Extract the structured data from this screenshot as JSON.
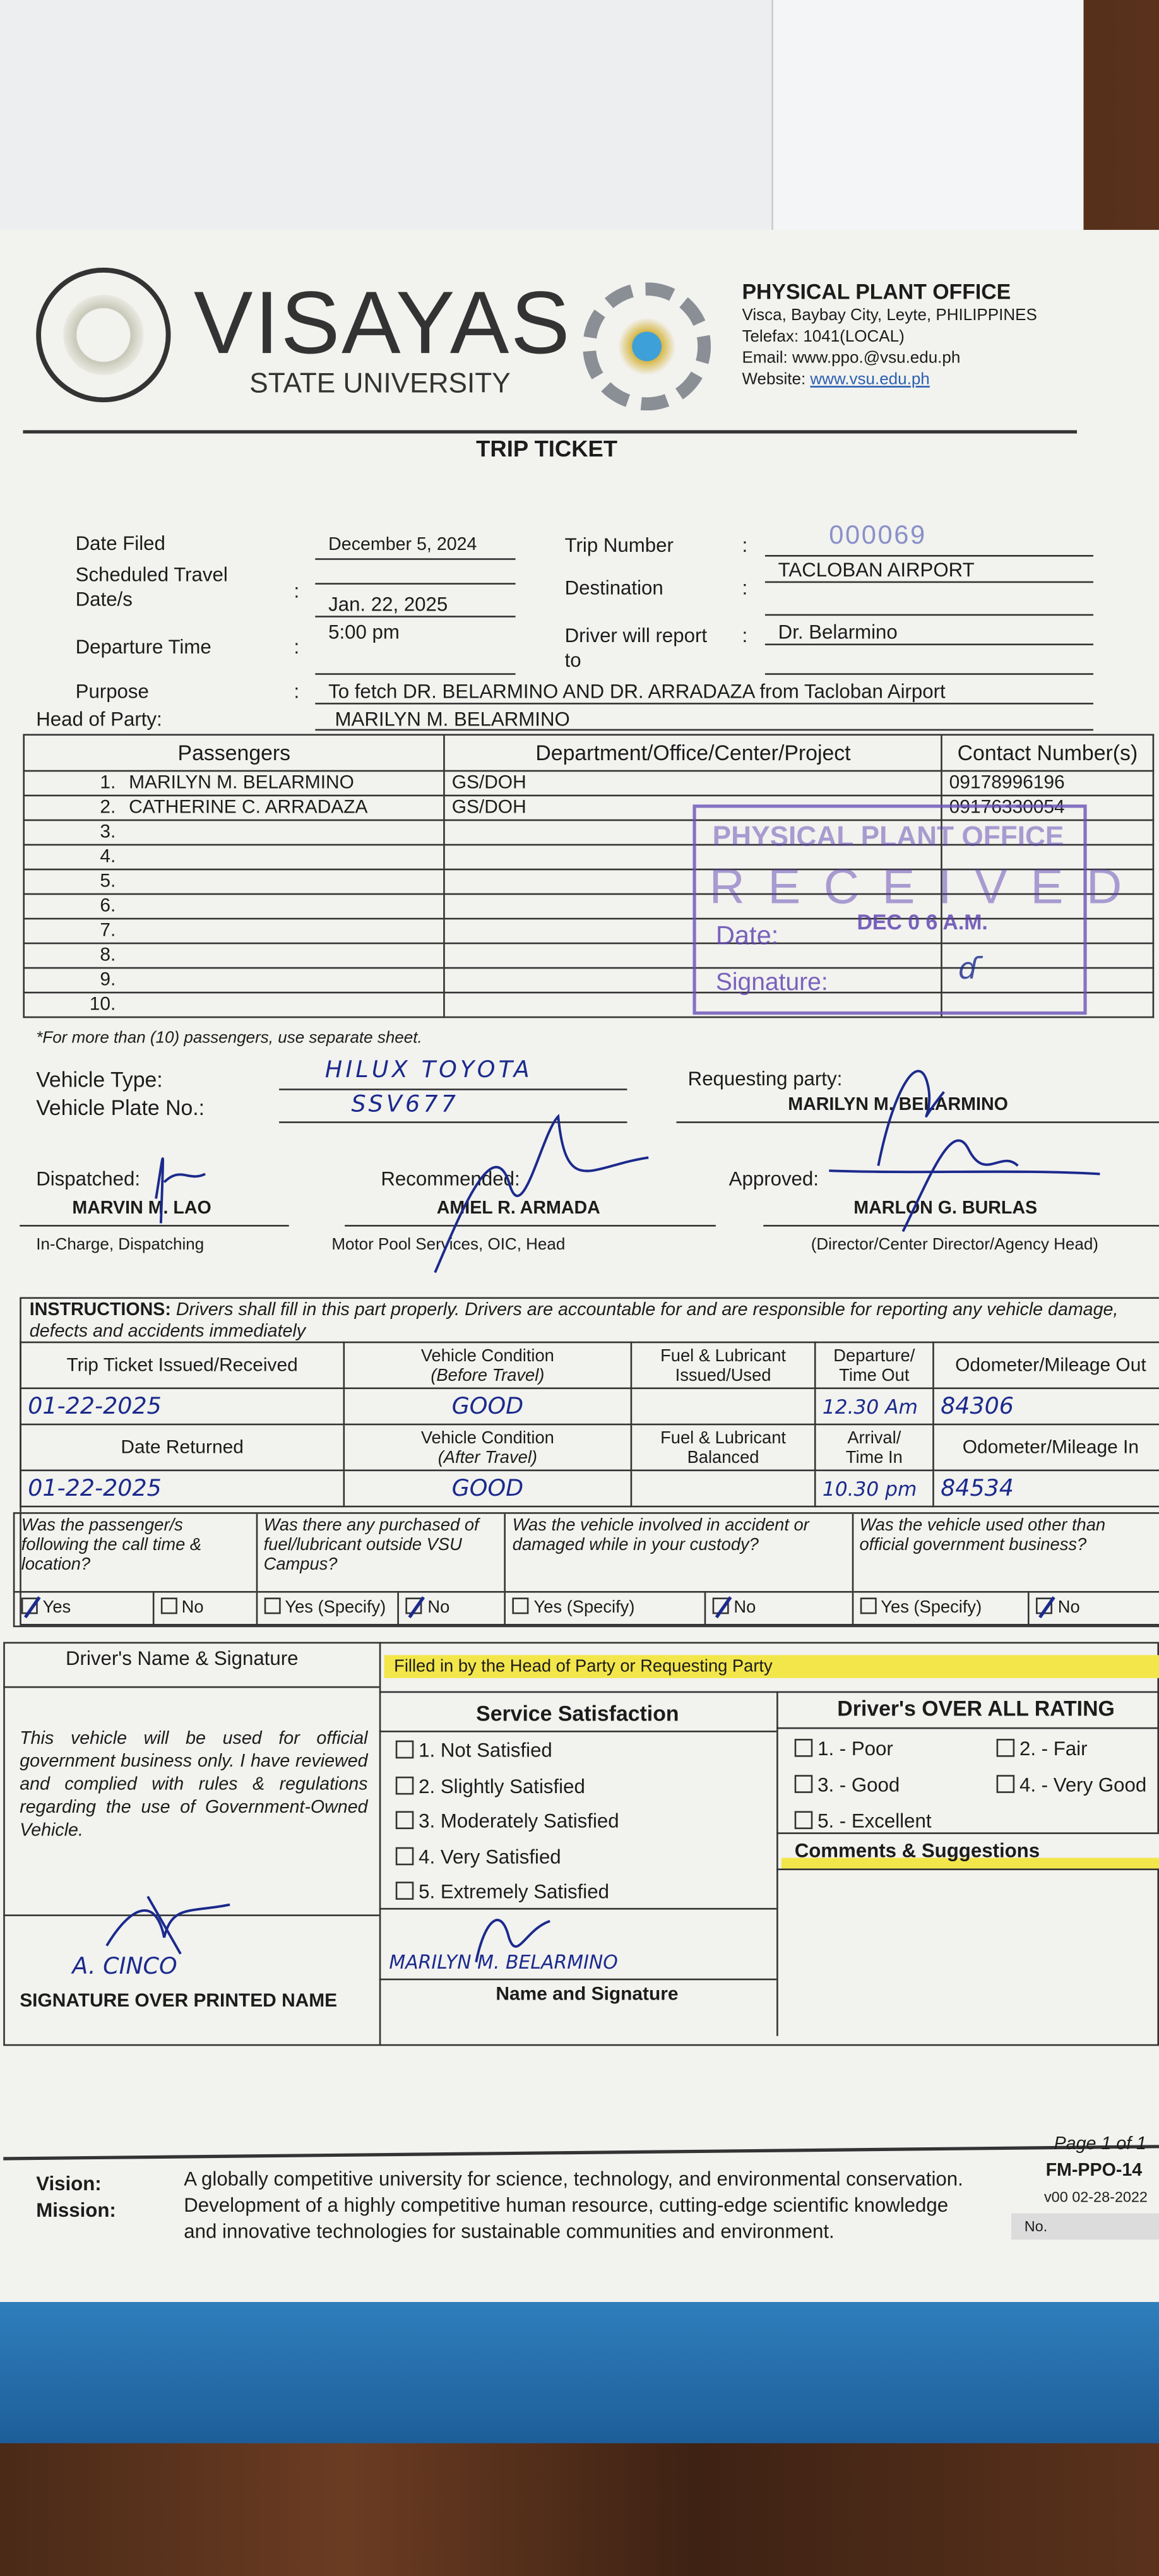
{
  "university": {
    "name": "VISAYAS",
    "sub": "STATE UNIVERSITY",
    "seal_text": "VISAYAS STATE UNIVERSITY"
  },
  "office": {
    "name": "PHYSICAL PLANT OFFICE",
    "address": "Visca, Baybay City, Leyte, PHILIPPINES",
    "telefax": "Telefax: 1041(LOCAL)",
    "email": "Email: www.ppo.@vsu.edu.ph",
    "website_label": "Website: ",
    "website": "www.vsu.edu.ph",
    "logo_text": "PHYSICAL PLANT OFFICE"
  },
  "title": "TRIP TICKET",
  "fields": {
    "date_filed_label": "Date Filed",
    "date_filed": "December 5, 2024",
    "sched_label_1": "Scheduled Travel",
    "sched_label_2": "Date/s",
    "sched": "Jan. 22, 2025",
    "departure_label": "Departure Time",
    "departure": "5:00 pm",
    "purpose_label": "Purpose",
    "purpose": "To fetch DR. BELARMINO AND DR. ARRADAZA from Tacloban Airport",
    "head_label": "Head of Party:",
    "head": "MARILYN M. BELARMINO",
    "trip_number_label": "Trip Number",
    "trip_number": "000069",
    "destination_label": "Destination",
    "destination": "TACLOBAN AIRPORT",
    "report_label_1": "Driver will report",
    "report_label_2": "to",
    "report_to": "Dr. Belarmino",
    "colon": ":"
  },
  "passengers": {
    "headers": [
      "Passengers",
      "Department/Office/Center/Project",
      "Contact Number(s)"
    ],
    "rows": [
      {
        "no": "1.",
        "name": "MARILYN M. BELARMINO",
        "dept": "GS/DOH",
        "contact": "09178996196"
      },
      {
        "no": "2.",
        "name": "CATHERINE C. ARRADAZA",
        "dept": "GS/DOH",
        "contact": "09176330054"
      },
      {
        "no": "3.",
        "name": "",
        "dept": "",
        "contact": ""
      },
      {
        "no": "4.",
        "name": "",
        "dept": "",
        "contact": ""
      },
      {
        "no": "5.",
        "name": "",
        "dept": "",
        "contact": ""
      },
      {
        "no": "6.",
        "name": "",
        "dept": "",
        "contact": ""
      },
      {
        "no": "7.",
        "name": "",
        "dept": "",
        "contact": ""
      },
      {
        "no": "8.",
        "name": "",
        "dept": "",
        "contact": ""
      },
      {
        "no": "9.",
        "name": "",
        "dept": "",
        "contact": ""
      },
      {
        "no": "10.",
        "name": "",
        "dept": "",
        "contact": ""
      }
    ],
    "note": "*For more than (10) passengers, use separate sheet."
  },
  "stamp": {
    "office": "PHYSICAL PLANT OFFICE",
    "received": "RECEIVED",
    "date_label": "Date:",
    "date": "DEC 0 6 A.M.",
    "signature_label": "Signature:"
  },
  "vehicle": {
    "type_label": "Vehicle Type:",
    "type": "HILUX TOYOTA",
    "plate_label": "Vehicle Plate No.:",
    "plate": "SSV677",
    "requesting_label": "Requesting party:",
    "requesting": "MARILYN M. BELARMINO"
  },
  "signatories": {
    "dispatched_label": "Dispatched:",
    "dispatched": "MARVIN M. LAO",
    "dispatched_role": "In-Charge, Dispatching",
    "recommended_label": "Recommended:",
    "recommended": "AMIEL R. ARMADA",
    "recommended_role": "Motor Pool Services, OIC, Head",
    "approved_label": "Approved:",
    "approved": "MARLON G. BURLAS",
    "approved_role": "(Director/Center Director/Agency Head)"
  },
  "instructions": {
    "label": "INSTRUCTIONS:",
    "text": " Drivers shall fill in this part properly.  Drivers are accountable for and are responsible for reporting any vehicle damage, defects and accidents immediately",
    "h1": [
      "Trip Ticket Issued/Received",
      "Vehicle Condition",
      "(Before Travel)",
      "Fuel & Lubricant",
      "Issued/Used",
      "Departure/",
      "Time Out",
      "Odometer/Mileage Out"
    ],
    "r1": {
      "date": "01-22-2025",
      "condition": "GOOD",
      "fuel": "",
      "time": "12.30 Am",
      "odometer": "84306"
    },
    "h2": [
      "Date Returned",
      "Vehicle Condition",
      "(After Travel)",
      "Fuel & Lubricant",
      "Balanced",
      "Arrival/",
      "Time In",
      "Odometer/Mileage In"
    ],
    "r2": {
      "date": "01-22-2025",
      "condition": "GOOD",
      "fuel": "",
      "time": "10.30 pm",
      "odometer": "84534"
    }
  },
  "questions": [
    {
      "q": "Was the passenger/s following the call time & location?",
      "yes": "Yes",
      "no": "No",
      "answer": "yes"
    },
    {
      "q": "Was there any purchased of fuel/lubricant outside VSU Campus?",
      "yes": "Yes (Specify)",
      "no": "No",
      "answer": "no"
    },
    {
      "q": "Was the vehicle involved in accident or damaged while in your custody?",
      "yes": "Yes (Specify)",
      "no": "No",
      "answer": "no"
    },
    {
      "q": "Was the vehicle used other than official government business?",
      "yes": "Yes (Specify)",
      "no": "No",
      "answer": "no"
    }
  ],
  "driver": {
    "header": "Driver's Name & Signature",
    "statement": "This vehicle will be used for official government business only.  I have reviewed and complied with rules & regulations regarding the use of Government-Owned Vehicle.",
    "name": "A. CINCO",
    "sig_label": "SIGNATURE OVER PRINTED NAME"
  },
  "feedback": {
    "banner": "Filled in by the Head of Party or Requesting Party",
    "satisfaction_header": "Service Satisfaction",
    "satisfaction": [
      "1.  Not Satisfied",
      "2.  Slightly Satisfied",
      "3.  Moderately Satisfied",
      "4.  Very Satisfied",
      "5.  Extremely Satisfied"
    ],
    "rating_header": "Driver's OVER ALL RATING",
    "ratings": [
      "1. - Poor",
      "2. - Fair",
      "3. - Good",
      "4. - Very Good",
      "5. - Excellent"
    ],
    "comments_header": "Comments & Suggestions",
    "signer": "MARILYN M. BELARMINO",
    "signer_label": "Name and Signature"
  },
  "footer": {
    "vision_label": "Vision:",
    "vision": "A globally competitive university for science, technology, and environmental conservation.",
    "mission_label": "Mission:",
    "mission_1": "Development of a highly competitive human resource, cutting-edge scientific knowledge",
    "mission_2": "and innovative technologies for sustainable communities and environment.",
    "page": "Page 1 of 1",
    "form_code": "FM-PPO-14",
    "version": "v00 02-28-2022",
    "no_label": "No."
  },
  "colors": {
    "ink": "#1b2a8c",
    "stamp": "#5b3fb0",
    "highlight": "#f3e64a",
    "folder": "#2a74b3"
  }
}
